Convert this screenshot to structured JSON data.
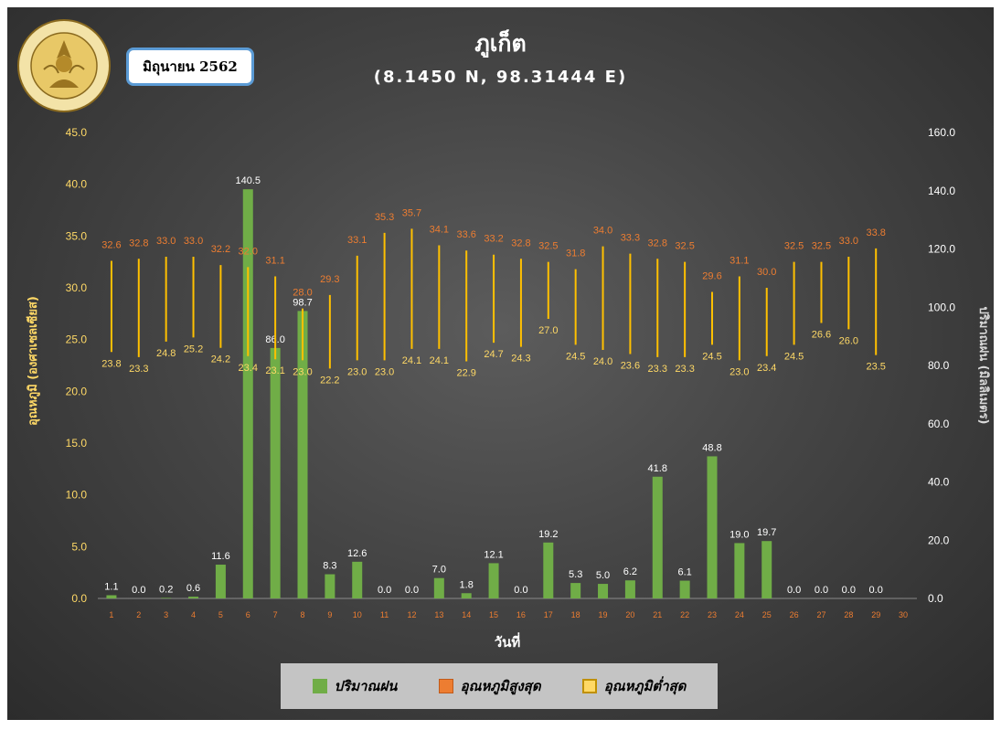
{
  "header": {
    "title": "ภูเก็ต",
    "subtitle": "(8.1450 N, 98.31444 E)",
    "date_label": "มิถุนายน 2562",
    "logo_text": "กรมอุตุนิยมวิทยา METEOROLOGICAL DEPARTMENT"
  },
  "axes": {
    "left_label": "อุณหภูมิ (องศาเซลเซียส)",
    "right_label": "ปริมาณฝน (มิลลิเมตร)",
    "x_label": "วันที่"
  },
  "legend": {
    "rain": "ปริมาณฝน",
    "max": "อุณหภูมิสูงสุด",
    "min": "อุณหภูมิต่ำสุด"
  },
  "colors": {
    "rain": "#70ad47",
    "max_text": "#ed7d31",
    "min_text": "#ffd966",
    "range_line": "#ffc000",
    "left_axis": "#ffd966",
    "right_axis": "#ffffff",
    "day_labels": "#ed7d31"
  },
  "chart_data": {
    "type": "bar",
    "x": [
      1,
      2,
      3,
      4,
      5,
      6,
      7,
      8,
      9,
      10,
      11,
      12,
      13,
      14,
      15,
      16,
      17,
      18,
      19,
      20,
      21,
      22,
      23,
      24,
      25,
      26,
      27,
      28,
      29,
      30
    ],
    "xlabel": "วันที่",
    "y_left_label": "อุณหภูมิ (องศาเซลเซียส)",
    "y_right_label": "ปริมาณฝน (มิลลิเมตร)",
    "y_left_lim": [
      0,
      45
    ],
    "y_left_ticks": [
      "0.0",
      "5.0",
      "10.0",
      "15.0",
      "20.0",
      "25.0",
      "30.0",
      "35.0",
      "40.0",
      "45.0"
    ],
    "y_right_lim": [
      0,
      160
    ],
    "y_right_ticks": [
      "0.0",
      "20.0",
      "40.0",
      "60.0",
      "80.0",
      "100.0",
      "120.0",
      "140.0",
      "160.0"
    ],
    "rain": [
      1.1,
      0.0,
      0.2,
      0.6,
      11.6,
      140.5,
      86.0,
      98.7,
      8.3,
      12.6,
      0.0,
      0.0,
      7.0,
      1.8,
      12.1,
      0.0,
      19.2,
      5.3,
      5.0,
      6.2,
      41.8,
      6.1,
      48.8,
      19.0,
      19.7,
      0.0,
      0.0,
      0.0,
      0.0,
      null
    ],
    "temp_max": [
      32.6,
      32.8,
      33.0,
      33.0,
      32.2,
      32.0,
      31.1,
      28.0,
      29.3,
      33.1,
      35.3,
      35.7,
      34.1,
      33.6,
      33.2,
      32.8,
      32.5,
      31.8,
      34.0,
      33.3,
      32.8,
      32.5,
      29.6,
      31.1,
      30.0,
      32.5,
      32.5,
      33.0,
      33.8,
      null
    ],
    "temp_min": [
      23.8,
      23.3,
      24.8,
      25.2,
      24.2,
      23.4,
      23.1,
      23.0,
      22.2,
      23.0,
      23.0,
      24.1,
      24.1,
      22.9,
      24.7,
      24.3,
      27.0,
      24.5,
      24.0,
      23.6,
      23.3,
      23.3,
      24.5,
      23.0,
      23.4,
      24.5,
      26.6,
      26.0,
      23.5,
      null
    ],
    "legend_position": "bottom"
  }
}
